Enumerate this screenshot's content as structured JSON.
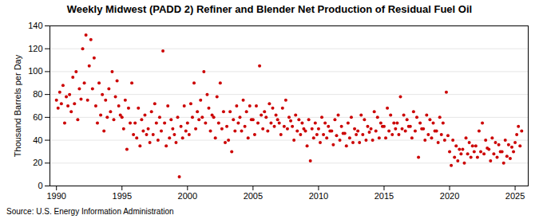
{
  "chart_data": {
    "type": "scatter",
    "title": "Weekly Midwest (PADD 2) Refiner and Blender Net Production of Residual Fuel Oil",
    "y_label": "Thousand Barrels per Day",
    "source": "Source: U.S. Energy Information Administration",
    "color": "#cc0000",
    "marker": "circle",
    "grid": true,
    "xlim": [
      1989.5,
      2026
    ],
    "xticks": [
      1990,
      1995,
      2000,
      2005,
      2010,
      2015,
      2020,
      2025
    ],
    "ylim": [
      0,
      140
    ],
    "yticks": [
      0,
      20,
      40,
      60,
      80,
      100,
      120,
      140
    ],
    "x": [
      1990,
      1990.125,
      1990.25,
      1990.375,
      1990.5,
      1990.625,
      1990.75,
      1990.875,
      1991,
      1991.125,
      1991.25,
      1991.375,
      1991.5,
      1991.625,
      1991.75,
      1991.875,
      1992,
      1992.125,
      1992.25,
      1992.375,
      1992.5,
      1992.625,
      1992.75,
      1992.875,
      1993,
      1993.125,
      1993.25,
      1993.375,
      1993.5,
      1993.625,
      1993.75,
      1993.875,
      1994,
      1994.125,
      1994.25,
      1994.375,
      1994.5,
      1994.625,
      1994.75,
      1994.875,
      1995,
      1995.125,
      1995.25,
      1995.375,
      1995.5,
      1995.625,
      1995.75,
      1995.875,
      1996,
      1996.125,
      1996.25,
      1996.375,
      1996.5,
      1996.625,
      1996.75,
      1996.875,
      1997,
      1997.125,
      1997.25,
      1997.375,
      1997.5,
      1997.625,
      1997.75,
      1997.875,
      1998,
      1998.125,
      1998.25,
      1998.375,
      1998.5,
      1998.625,
      1998.75,
      1998.875,
      1999,
      1999.125,
      1999.25,
      1999.375,
      1999.5,
      1999.625,
      1999.75,
      1999.875,
      2000,
      2000.125,
      2000.25,
      2000.375,
      2000.5,
      2000.625,
      2000.75,
      2000.875,
      2001,
      2001.125,
      2001.25,
      2001.375,
      2001.5,
      2001.625,
      2001.75,
      2001.875,
      2002,
      2002.125,
      2002.25,
      2002.375,
      2002.5,
      2002.625,
      2002.75,
      2002.875,
      2003,
      2003.125,
      2003.25,
      2003.375,
      2003.5,
      2003.625,
      2003.75,
      2003.875,
      2004,
      2004.125,
      2004.25,
      2004.375,
      2004.5,
      2004.625,
      2004.75,
      2004.875,
      2005,
      2005.125,
      2005.25,
      2005.375,
      2005.5,
      2005.625,
      2005.75,
      2005.875,
      2006,
      2006.125,
      2006.25,
      2006.375,
      2006.5,
      2006.625,
      2006.75,
      2006.875,
      2007,
      2007.125,
      2007.25,
      2007.375,
      2007.5,
      2007.625,
      2007.75,
      2007.875,
      2008,
      2008.125,
      2008.25,
      2008.375,
      2008.5,
      2008.625,
      2008.75,
      2008.875,
      2009,
      2009.125,
      2009.25,
      2009.375,
      2009.5,
      2009.625,
      2009.75,
      2009.875,
      2010,
      2010.125,
      2010.25,
      2010.375,
      2010.5,
      2010.625,
      2010.75,
      2010.875,
      2011,
      2011.125,
      2011.25,
      2011.375,
      2011.5,
      2011.625,
      2011.75,
      2011.875,
      2012,
      2012.125,
      2012.25,
      2012.375,
      2012.5,
      2012.625,
      2012.75,
      2012.875,
      2013,
      2013.125,
      2013.25,
      2013.375,
      2013.5,
      2013.625,
      2013.75,
      2013.875,
      2014,
      2014.125,
      2014.25,
      2014.375,
      2014.5,
      2014.625,
      2014.75,
      2014.875,
      2015,
      2015.125,
      2015.25,
      2015.375,
      2015.5,
      2015.625,
      2015.75,
      2015.875,
      2016,
      2016.125,
      2016.25,
      2016.375,
      2016.5,
      2016.625,
      2016.75,
      2016.875,
      2017,
      2017.125,
      2017.25,
      2017.375,
      2017.5,
      2017.625,
      2017.75,
      2017.875,
      2018,
      2018.125,
      2018.25,
      2018.375,
      2018.5,
      2018.625,
      2018.75,
      2018.875,
      2019,
      2019.125,
      2019.25,
      2019.375,
      2019.5,
      2019.625,
      2019.75,
      2019.875,
      2020,
      2020.125,
      2020.25,
      2020.375,
      2020.5,
      2020.625,
      2020.75,
      2020.875,
      2021,
      2021.125,
      2021.25,
      2021.375,
      2021.5,
      2021.625,
      2021.75,
      2021.875,
      2022,
      2022.125,
      2022.25,
      2022.375,
      2022.5,
      2022.625,
      2022.75,
      2022.875,
      2023,
      2023.125,
      2023.25,
      2023.375,
      2023.5,
      2023.625,
      2023.75,
      2023.875,
      2024,
      2024.125,
      2024.25,
      2024.375,
      2024.5,
      2024.625,
      2024.75,
      2024.875,
      2025,
      2025.125,
      2025.25,
      2025.375,
      2025.5
    ],
    "values": [
      75,
      68,
      82,
      72,
      88,
      55,
      78,
      70,
      80,
      65,
      95,
      72,
      100,
      58,
      85,
      76,
      120,
      90,
      132,
      75,
      105,
      128,
      85,
      112,
      70,
      55,
      90,
      62,
      80,
      48,
      75,
      60,
      85,
      65,
      100,
      58,
      78,
      92,
      70,
      62,
      60,
      50,
      75,
      32,
      68,
      55,
      90,
      45,
      55,
      42,
      68,
      35,
      58,
      48,
      62,
      45,
      50,
      38,
      65,
      45,
      72,
      55,
      40,
      60,
      48,
      118,
      55,
      35,
      70,
      42,
      58,
      50,
      45,
      38,
      60,
      8,
      52,
      42,
      70,
      48,
      55,
      45,
      72,
      60,
      90,
      50,
      65,
      58,
      75,
      60,
      100,
      55,
      80,
      68,
      48,
      62,
      60,
      42,
      78,
      55,
      90,
      50,
      65,
      38,
      52,
      40,
      65,
      30,
      58,
      48,
      70,
      55,
      60,
      48,
      75,
      52,
      65,
      42,
      70,
      58,
      58,
      45,
      70,
      55,
      105,
      62,
      50,
      65,
      60,
      48,
      72,
      55,
      68,
      52,
      62,
      58,
      55,
      45,
      68,
      52,
      75,
      50,
      60,
      57,
      52,
      40,
      62,
      48,
      58,
      45,
      55,
      50,
      48,
      35,
      58,
      22,
      50,
      42,
      55,
      45,
      50,
      38,
      60,
      45,
      55,
      42,
      52,
      48,
      48,
      36,
      58,
      44,
      62,
      40,
      52,
      46,
      46,
      35,
      55,
      42,
      60,
      38,
      50,
      45,
      48,
      38,
      62,
      45,
      58,
      40,
      52,
      47,
      50,
      40,
      65,
      48,
      60,
      42,
      55,
      52,
      52,
      42,
      68,
      48,
      62,
      45,
      55,
      50,
      55,
      45,
      78,
      50,
      62,
      48,
      58,
      52,
      52,
      42,
      65,
      48,
      60,
      25,
      55,
      50,
      50,
      40,
      62,
      45,
      58,
      42,
      55,
      48,
      48,
      38,
      60,
      45,
      55,
      40,
      82,
      44,
      30,
      18,
      40,
      25,
      35,
      22,
      32,
      28,
      32,
      20,
      42,
      28,
      38,
      25,
      35,
      30,
      35,
      25,
      48,
      30,
      55,
      28,
      40,
      33,
      32,
      22,
      42,
      28,
      38,
      25,
      36,
      30,
      30,
      20,
      40,
      26,
      36,
      24,
      34,
      30,
      38,
      45,
      52,
      35,
      48
    ]
  }
}
